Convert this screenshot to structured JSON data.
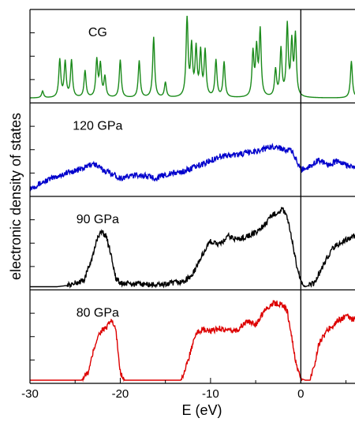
{
  "chart_data": {
    "type": "line",
    "xlabel": "E (eV)",
    "ylabel": "electronic density of states",
    "xlim": [
      -30,
      6
    ],
    "x_ticks": [
      -30,
      -20,
      -10,
      0
    ],
    "x_tick_labels": [
      "-30",
      "-20",
      "-10",
      "0"
    ],
    "fermi_level": 0,
    "panels": [
      {
        "label": "CG",
        "color": "#1a8a1a",
        "style": "peaks",
        "baseline": 0.02,
        "peaks": [
          [
            -28.6,
            0.08
          ],
          [
            -26.7,
            0.45
          ],
          [
            -26.1,
            0.42
          ],
          [
            -25.4,
            0.44
          ],
          [
            -23.9,
            0.32
          ],
          [
            -22.6,
            0.44
          ],
          [
            -22.2,
            0.38
          ],
          [
            -21.7,
            0.24
          ],
          [
            -20.0,
            0.45
          ],
          [
            -17.9,
            0.44
          ],
          [
            -16.3,
            0.72
          ],
          [
            -15.0,
            0.18
          ],
          [
            -12.6,
            0.95
          ],
          [
            -12.1,
            0.58
          ],
          [
            -11.6,
            0.56
          ],
          [
            -11.1,
            0.52
          ],
          [
            -10.6,
            0.54
          ],
          [
            -9.4,
            0.44
          ],
          [
            -8.5,
            0.42
          ],
          [
            -5.3,
            0.52
          ],
          [
            -4.9,
            0.55
          ],
          [
            -4.5,
            0.78
          ],
          [
            -2.8,
            0.32
          ],
          [
            -2.2,
            0.56
          ],
          [
            -1.5,
            0.84
          ],
          [
            -1.0,
            0.62
          ],
          [
            -0.6,
            0.72
          ],
          [
            5.6,
            0.44
          ]
        ]
      },
      {
        "label": "120 GPa",
        "color": "#0000cc",
        "style": "broad",
        "points": [
          [
            -30,
            0.06
          ],
          [
            -28,
            0.16
          ],
          [
            -26,
            0.24
          ],
          [
            -24,
            0.3
          ],
          [
            -23,
            0.36
          ],
          [
            -22,
            0.28
          ],
          [
            -21,
            0.24
          ],
          [
            -20,
            0.18
          ],
          [
            -18,
            0.22
          ],
          [
            -16,
            0.18
          ],
          [
            -15,
            0.22
          ],
          [
            -13,
            0.26
          ],
          [
            -11,
            0.34
          ],
          [
            -9,
            0.44
          ],
          [
            -7,
            0.46
          ],
          [
            -5,
            0.5
          ],
          [
            -3,
            0.56
          ],
          [
            -1,
            0.5
          ],
          [
            0,
            0.28
          ],
          [
            1,
            0.32
          ],
          [
            2,
            0.4
          ],
          [
            3,
            0.34
          ],
          [
            4,
            0.38
          ],
          [
            5,
            0.34
          ],
          [
            6,
            0.3
          ]
        ]
      },
      {
        "label": "90 GPa",
        "color": "#000000",
        "style": "broad",
        "points": [
          [
            -27,
            0.0
          ],
          [
            -25.5,
            0.02
          ],
          [
            -24,
            0.08
          ],
          [
            -23,
            0.38
          ],
          [
            -22.5,
            0.6
          ],
          [
            -22,
            0.66
          ],
          [
            -21.5,
            0.58
          ],
          [
            -21,
            0.38
          ],
          [
            -20.5,
            0.1
          ],
          [
            -20,
            0.04
          ],
          [
            -18,
            0.03
          ],
          [
            -16,
            0.02
          ],
          [
            -15,
            0.03
          ],
          [
            -13,
            0.06
          ],
          [
            -12,
            0.14
          ],
          [
            -11,
            0.36
          ],
          [
            -10.5,
            0.46
          ],
          [
            -10,
            0.54
          ],
          [
            -9,
            0.5
          ],
          [
            -8,
            0.6
          ],
          [
            -7,
            0.56
          ],
          [
            -6,
            0.6
          ],
          [
            -5,
            0.64
          ],
          [
            -4,
            0.74
          ],
          [
            -3,
            0.86
          ],
          [
            -2,
            0.92
          ],
          [
            -1.5,
            0.82
          ],
          [
            -1,
            0.56
          ],
          [
            -0.5,
            0.28
          ],
          [
            0,
            0.06
          ],
          [
            0.5,
            0.0
          ],
          [
            1.5,
            0.04
          ],
          [
            2.5,
            0.26
          ],
          [
            3.5,
            0.46
          ],
          [
            5,
            0.56
          ],
          [
            6,
            0.6
          ]
        ]
      },
      {
        "label": "80 GPa",
        "color": "#dd0000",
        "style": "broad",
        "points": [
          [
            -24.3,
            0.0
          ],
          [
            -23.5,
            0.1
          ],
          [
            -23,
            0.34
          ],
          [
            -22.5,
            0.52
          ],
          [
            -22,
            0.6
          ],
          [
            -21.5,
            0.62
          ],
          [
            -21,
            0.72
          ],
          [
            -20.5,
            0.6
          ],
          [
            -20,
            0.1
          ],
          [
            -19.5,
            0.0
          ],
          [
            -13.3,
            0.0
          ],
          [
            -12.8,
            0.12
          ],
          [
            -12,
            0.42
          ],
          [
            -11.5,
            0.56
          ],
          [
            -11,
            0.6
          ],
          [
            -10,
            0.58
          ],
          [
            -9,
            0.62
          ],
          [
            -8,
            0.58
          ],
          [
            -7,
            0.6
          ],
          [
            -6,
            0.7
          ],
          [
            -5,
            0.66
          ],
          [
            -4,
            0.84
          ],
          [
            -3,
            0.92
          ],
          [
            -2,
            0.9
          ],
          [
            -1.5,
            0.82
          ],
          [
            -1,
            0.5
          ],
          [
            -0.5,
            0.18
          ],
          [
            0,
            0.02
          ],
          [
            0.5,
            0.0
          ],
          [
            1,
            0.0
          ],
          [
            1.5,
            0.18
          ],
          [
            2,
            0.44
          ],
          [
            3,
            0.6
          ],
          [
            4,
            0.7
          ],
          [
            5,
            0.76
          ],
          [
            6,
            0.72
          ]
        ]
      }
    ]
  }
}
